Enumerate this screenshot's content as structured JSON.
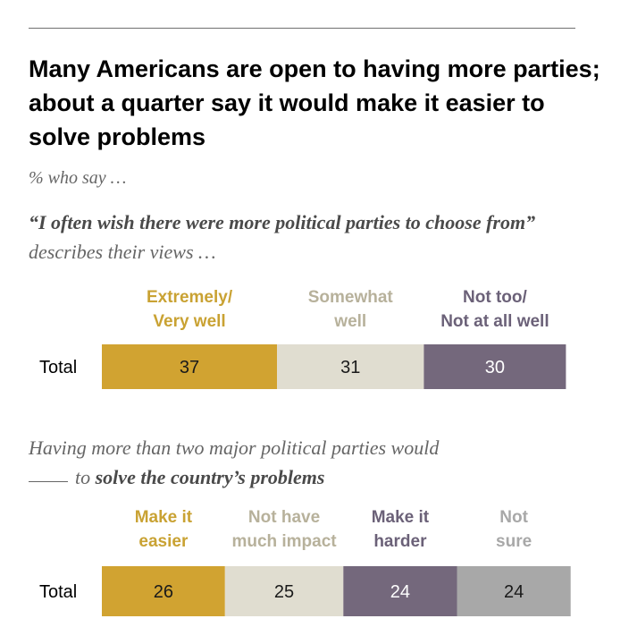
{
  "title": "Many Americans are open to having more parties; about a quarter say it would make it easier to solve problems",
  "subtitle": "% who say …",
  "questions": [
    {
      "quote_bold": "“I often wish there were more political parties to choose from”",
      "rest": " describes their views …"
    },
    {
      "prefix": "Having more than two major political parties would",
      "mid": "to ",
      "bold": "solve the country’s problems"
    }
  ],
  "chart_data": [
    {
      "type": "bar",
      "stacked": true,
      "orientation": "horizontal",
      "categories": [
        "Total"
      ],
      "series": [
        {
          "name": "Extremely/ Very well",
          "label_lines": [
            "Extremely/",
            "Very well"
          ],
          "values": [
            37
          ],
          "color": "#d1a331",
          "label_color": "#c9a233"
        },
        {
          "name": "Somewhat well",
          "label_lines": [
            "Somewhat",
            "well"
          ],
          "values": [
            31
          ],
          "color": "#e0ddd0",
          "label_color": "#b7b19b"
        },
        {
          "name": "Not too/ Not at all well",
          "label_lines": [
            "Not too/",
            "Not at all well"
          ],
          "values": [
            30
          ],
          "color": "#74687c",
          "label_color": "#6b6178"
        }
      ]
    },
    {
      "type": "bar",
      "stacked": true,
      "orientation": "horizontal",
      "categories": [
        "Total"
      ],
      "series": [
        {
          "name": "Make it easier",
          "label_lines": [
            "Make it",
            "easier"
          ],
          "values": [
            26
          ],
          "color": "#d1a331",
          "label_color": "#c9a233"
        },
        {
          "name": "Not have much impact",
          "label_lines": [
            "Not have",
            "much impact"
          ],
          "values": [
            25
          ],
          "color": "#e0ddd0",
          "label_color": "#b7b19b"
        },
        {
          "name": "Make it harder",
          "label_lines": [
            "Make it",
            "harder"
          ],
          "values": [
            24
          ],
          "color": "#74687c",
          "label_color": "#6b6178"
        },
        {
          "name": "Not sure",
          "label_lines": [
            "Not",
            "sure"
          ],
          "values": [
            24
          ],
          "color": "#a8a8a8",
          "label_color": "#a8a8a8"
        }
      ]
    }
  ]
}
